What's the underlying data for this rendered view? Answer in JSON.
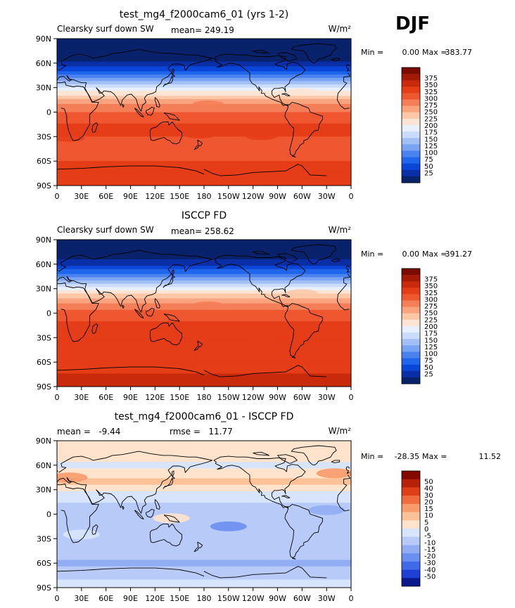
{
  "season": "DJF",
  "colors": {
    "abs_palette": [
      "#08226b",
      "#0a2ea6",
      "#0a47d9",
      "#1f66ec",
      "#4a82ef",
      "#7aa3f3",
      "#a3c0f6",
      "#cbdcfa",
      "#e9f0fd",
      "#fde4d4",
      "#fcc8a8",
      "#f9a47e",
      "#f47e57",
      "#ef5731",
      "#e43d17",
      "#c92a0b",
      "#a31a05",
      "#7a0b00"
    ],
    "diff_palette": [
      "#0a1a8c",
      "#1f3fd6",
      "#3f6ae8",
      "#6b8ff0",
      "#92adf4",
      "#b8cbf8",
      "#d7e4fb",
      "#ffe3cc",
      "#fbc29a",
      "#f79a6c",
      "#f06b40",
      "#de3e18",
      "#b8200a",
      "#820800"
    ],
    "land_outline": "#000000"
  },
  "chart_data": [
    {
      "type": "heatmap",
      "id": "model",
      "title": "test_mg4_f2000cam6_01 (yrs 1-2)",
      "left_label": "Clearsky surf down SW",
      "center_label": "mean= 249.19",
      "right_label": "W/m²",
      "mean": 249.19,
      "min": 0.0,
      "max": 383.77,
      "min_label": "Min =",
      "min_value": "0.00",
      "max_label": "Max =",
      "max_value": "383.77",
      "xlabel": "",
      "ylabel": "",
      "xlim": [
        0,
        360
      ],
      "ylim": [
        -90,
        90
      ],
      "lon_ticks": [
        "0",
        "30E",
        "60E",
        "90E",
        "120E",
        "150E",
        "180",
        "150W",
        "120W",
        "90W",
        "60W",
        "30W",
        "0"
      ],
      "lat_ticks": [
        "90N",
        "60N",
        "30N",
        "0",
        "30S",
        "60S",
        "90S"
      ],
      "colorbar_levels": [
        "375",
        "350",
        "325",
        "300",
        "275",
        "250",
        "225",
        "200",
        "175",
        "150",
        "125",
        "100",
        "75",
        "50",
        "25"
      ],
      "zonal_profile": {
        "lat": [
          90,
          80,
          70,
          60,
          50,
          40,
          30,
          20,
          10,
          0,
          -10,
          -20,
          -30,
          -40,
          -50,
          -60,
          -70,
          -80,
          -90
        ],
        "values": [
          0,
          0,
          5,
          30,
          75,
          140,
          200,
          255,
          300,
          325,
          345,
          355,
          350,
          340,
          340,
          350,
          360,
          365,
          366
        ]
      }
    },
    {
      "type": "heatmap",
      "id": "obs",
      "title": "ISCCP FD",
      "left_label": "Clearsky surf down SW",
      "center_label": "mean= 258.62",
      "right_label": "W/m²",
      "mean": 258.62,
      "min": 0.0,
      "max": 391.27,
      "min_label": "Min =",
      "min_value": "0.00",
      "max_label": "Max =",
      "max_value": "391.27",
      "xlabel": "",
      "ylabel": "",
      "xlim": [
        0,
        360
      ],
      "ylim": [
        -90,
        90
      ],
      "lon_ticks": [
        "0",
        "30E",
        "60E",
        "90E",
        "120E",
        "150E",
        "180",
        "150W",
        "120W",
        "90W",
        "60W",
        "30W",
        "0"
      ],
      "lat_ticks": [
        "90N",
        "60N",
        "30N",
        "0",
        "30S",
        "60S",
        "90S"
      ],
      "colorbar_levels": [
        "375",
        "350",
        "325",
        "300",
        "275",
        "250",
        "225",
        "200",
        "175",
        "150",
        "125",
        "100",
        "75",
        "50",
        "25"
      ],
      "zonal_profile": {
        "lat": [
          90,
          80,
          70,
          60,
          50,
          40,
          30,
          20,
          10,
          0,
          -10,
          -20,
          -30,
          -40,
          -50,
          -60,
          -70,
          -80,
          -90
        ],
        "values": [
          0,
          0,
          10,
          40,
          90,
          155,
          215,
          270,
          310,
          335,
          350,
          360,
          355,
          350,
          350,
          360,
          370,
          380,
          385
        ]
      }
    },
    {
      "type": "heatmap",
      "id": "diff",
      "title": "test_mg4_f2000cam6_01 - ISCCP FD",
      "left_label": "mean =   -9.44",
      "center_label": "rmse =   11.77",
      "right_label": "W/m²",
      "mean": -9.44,
      "rmse": 11.77,
      "min": -28.35,
      "max": 11.52,
      "min_label": "Min =",
      "min_value": "-28.35",
      "max_label": "Max =",
      "max_value": "11.52",
      "xlabel": "",
      "ylabel": "",
      "xlim": [
        0,
        360
      ],
      "ylim": [
        -90,
        90
      ],
      "lon_ticks": [
        "0",
        "30E",
        "60E",
        "90E",
        "120E",
        "150E",
        "180",
        "150W",
        "120W",
        "90W",
        "60W",
        "30W",
        "0"
      ],
      "lat_ticks": [
        "90N",
        "60N",
        "30N",
        "0",
        "30S",
        "60S",
        "90S"
      ],
      "colorbar_levels": [
        "50",
        "40",
        "30",
        "20",
        "15",
        "10",
        "5",
        "0",
        "-5",
        "-10",
        "-15",
        "-20",
        "-30",
        "-40",
        "-50"
      ],
      "zonal_profile": {
        "lat": [
          90,
          80,
          70,
          60,
          50,
          40,
          30,
          20,
          10,
          0,
          -10,
          -20,
          -30,
          -40,
          -50,
          -60,
          -70,
          -80,
          -90
        ],
        "values": [
          -2,
          -2,
          -3,
          -6,
          -4,
          2,
          -4,
          -8,
          -12,
          -14,
          -14,
          -12,
          -12,
          -10,
          -14,
          -16,
          -14,
          -10,
          -8
        ]
      }
    }
  ]
}
